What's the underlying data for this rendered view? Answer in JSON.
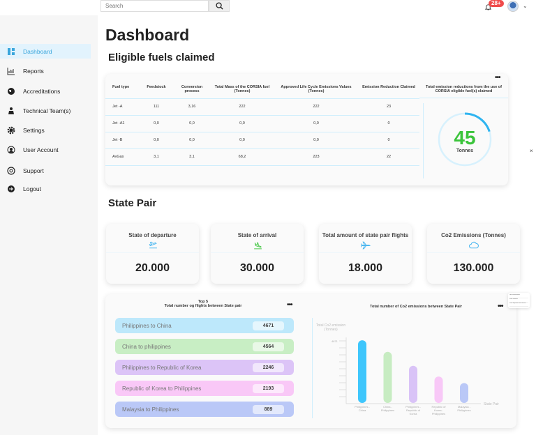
{
  "header": {
    "search_placeholder": "Search",
    "notification_badge": "28+"
  },
  "sidebar": {
    "items": [
      {
        "label": "Dashboard",
        "icon": "dashboard-icon",
        "active": true
      },
      {
        "label": "Reports",
        "icon": "reports-icon"
      },
      {
        "label": "Accreditations",
        "icon": "globe-icon"
      },
      {
        "label": "Technical Team(s)",
        "icon": "team-icon"
      },
      {
        "label": "Settings",
        "icon": "gear-icon"
      },
      {
        "label": "User Account",
        "icon": "user-icon"
      },
      {
        "label": "Support",
        "icon": "support-icon"
      },
      {
        "label": "Logout",
        "icon": "logout-icon"
      }
    ]
  },
  "page_title": "Dashboard",
  "fuels": {
    "title": "Eligible fuels claimed",
    "columns": [
      "Fuel type",
      "Feedstock",
      "Conversion process",
      "Total Mass of the CORSIA fuel (Tonnes)",
      "Approved Life Cycle Emissions Values (Tonnes)",
      "Emission Reduction Claimed"
    ],
    "rows": [
      [
        "Jet -A",
        "111",
        "3,16",
        "222",
        "222",
        "23"
      ],
      [
        "Jet -A1",
        "0,0",
        "0,0",
        "0,0",
        "0,0",
        "0"
      ],
      [
        "Jet -B",
        "0,0",
        "0,0",
        "0,0",
        "0,0",
        "0"
      ],
      [
        "AvGas",
        "3,1",
        "3,1",
        "68,2",
        "223",
        "22"
      ]
    ],
    "total_label": "Total emission reductions from the use of CORSIA eligible fuel(s) claimed",
    "total_value": "45",
    "total_unit": "Tonnes",
    "gauge_fraction": 0.2
  },
  "state_pair": {
    "title": "State Pair",
    "cards": [
      {
        "label": "State of departure",
        "value": "20.000",
        "icon": "plane-departure-icon",
        "color": "#4fb8f0"
      },
      {
        "label": "State of arrival",
        "value": "30.000",
        "icon": "plane-arrival-icon",
        "color": "#4cc94c"
      },
      {
        "label": "Total amount of state pair flights",
        "value": "18.000",
        "icon": "plane-icon",
        "color": "#4fb8f0"
      },
      {
        "label": "Co2 Emissions (Tonnes)",
        "value": "130.000",
        "icon": "cloud-icon",
        "color": "#4fb8f0"
      }
    ]
  },
  "top5": {
    "title1": "Top 5",
    "title2": "Total number og flights between State pair",
    "items": [
      {
        "label": "Philippines to China",
        "value": "4671",
        "color": "#bde8fb"
      },
      {
        "label": "China to philippines",
        "value": "4564",
        "color": "#c8eec4"
      },
      {
        "label": "Philippines to Republic of Korea",
        "value": "2246",
        "color": "#dcc4f7"
      },
      {
        "label": "Republic of Korea to Philippines",
        "value": "2193",
        "color": "#f9c8f7"
      },
      {
        "label": "Malaysia to Philippines",
        "value": "889",
        "color": "#bac8f7"
      }
    ]
  },
  "chart_data": {
    "type": "bar",
    "title": "Total number of Co2 emissions between State Pair",
    "ylabel": "Total Co2 emission (Tonnes)",
    "xlabel": "State Pair",
    "yticks": [
      "4671"
    ],
    "ylim": [
      0,
      5200
    ],
    "categories": [
      "Philippines - China",
      "China - Philippines",
      "Philippines - Republic of Korea",
      "Republic of Korea - Philippines",
      "Malaysia - Philippines"
    ],
    "values": [
      4671,
      3810,
      2770,
      1970,
      1480
    ],
    "colors": [
      "#3ec6fc",
      "#c7ecc2",
      "#d9c3f7",
      "#f8c8f7",
      "#bac8f7"
    ]
  },
  "popup_menu": [
    "Get full overview",
    "View in Excel",
    "View departure and arrival"
  ]
}
